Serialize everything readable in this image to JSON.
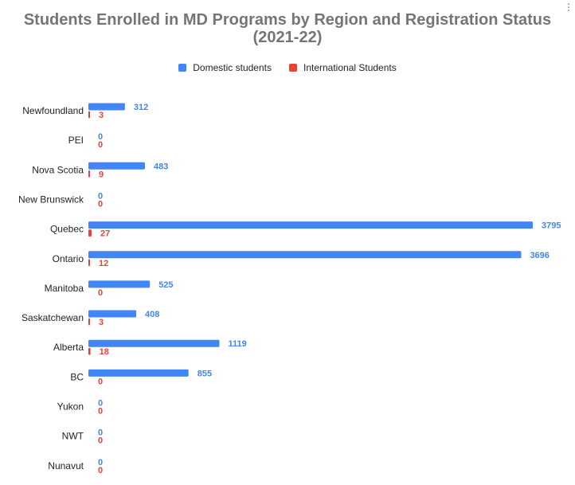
{
  "chart_data": {
    "type": "bar",
    "orientation": "horizontal",
    "title": "Students Enrolled in MD Programs by Region and Registration Status (2021-22)",
    "title_lines": [
      "Students Enrolled in MD Programs by Region and Registration Status",
      "(2021-22)"
    ],
    "categories": [
      "Newfoundland",
      "PEI",
      "Nova Scotia",
      "New Brunswick",
      "Quebec",
      "Ontario",
      "Manitoba",
      "Saskatchewan",
      "Alberta",
      "BC",
      "Yukon",
      "NWT",
      "Nunavut"
    ],
    "series": [
      {
        "name": "Domestic students",
        "color": "#4285F4",
        "values": [
          312,
          0,
          483,
          0,
          3795,
          3696,
          525,
          408,
          1119,
          855,
          0,
          0,
          0
        ]
      },
      {
        "name": "International Students",
        "color": "#EA4335",
        "values": [
          3,
          0,
          9,
          0,
          27,
          12,
          0,
          3,
          18,
          0,
          0,
          0,
          0
        ]
      }
    ],
    "xlim": [
      0,
      3795
    ],
    "grid": false,
    "legend_position": "top",
    "data_labels": true
  }
}
